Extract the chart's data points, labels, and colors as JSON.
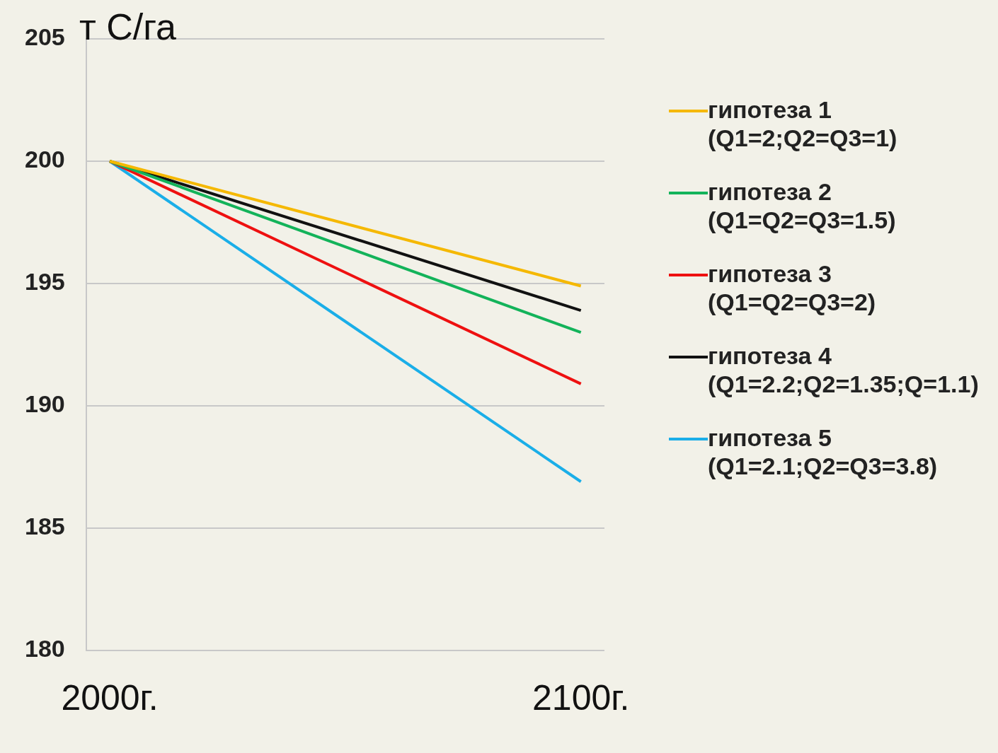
{
  "chart_data": {
    "type": "line",
    "ylabel": "т С/га",
    "x": [
      2000,
      2100
    ],
    "xlim": [
      1995,
      2105
    ],
    "xticks": [
      {
        "value": 2000,
        "label": "2000г."
      },
      {
        "value": 2100,
        "label": "2100г."
      }
    ],
    "ylim": [
      180,
      205
    ],
    "yticks": [
      180,
      185,
      190,
      195,
      200,
      205
    ],
    "grid": "y",
    "legend": "right",
    "marker": "none",
    "line_style": "solid",
    "series": [
      {
        "name": "гипотеза 1 (Q1=2;Q2=Q3=1)",
        "color": "#f5b800",
        "values": [
          200,
          194.9
        ]
      },
      {
        "name": "гипотеза 2 (Q1=Q2=Q3=1.5)",
        "color": "#13b35a",
        "values": [
          200,
          193
        ]
      },
      {
        "name": "гипотеза 3 (Q1=Q2=Q3=2)",
        "color": "#ee1010",
        "values": [
          200,
          190.9
        ]
      },
      {
        "name": "гипотеза 4 (Q1=2.2;Q2=1.35;Q=1.1)",
        "color": "#111111",
        "values": [
          200,
          193.9
        ]
      },
      {
        "name": "гипотеза 5 (Q1=2.1;Q2=Q3=3.8)",
        "color": "#1aaee8",
        "values": [
          200,
          186.9
        ]
      }
    ]
  }
}
